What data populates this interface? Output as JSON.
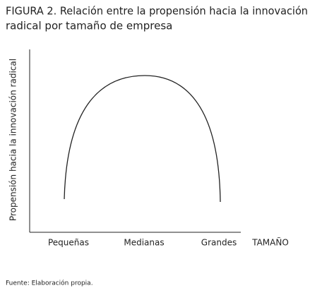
{
  "chart_data": {
    "type": "line",
    "title": [
      "FIGURA 2. Relación entre la propensión hacia la innovación",
      "radical por tamaño de empresa"
    ],
    "y_label": "Propensión hacia la innovación radical",
    "x_label": "TAMAÑO",
    "categories": [
      "Pequeñas",
      "Medianas",
      "Grandes"
    ],
    "source": "Fuente: Elaboración propia."
  }
}
